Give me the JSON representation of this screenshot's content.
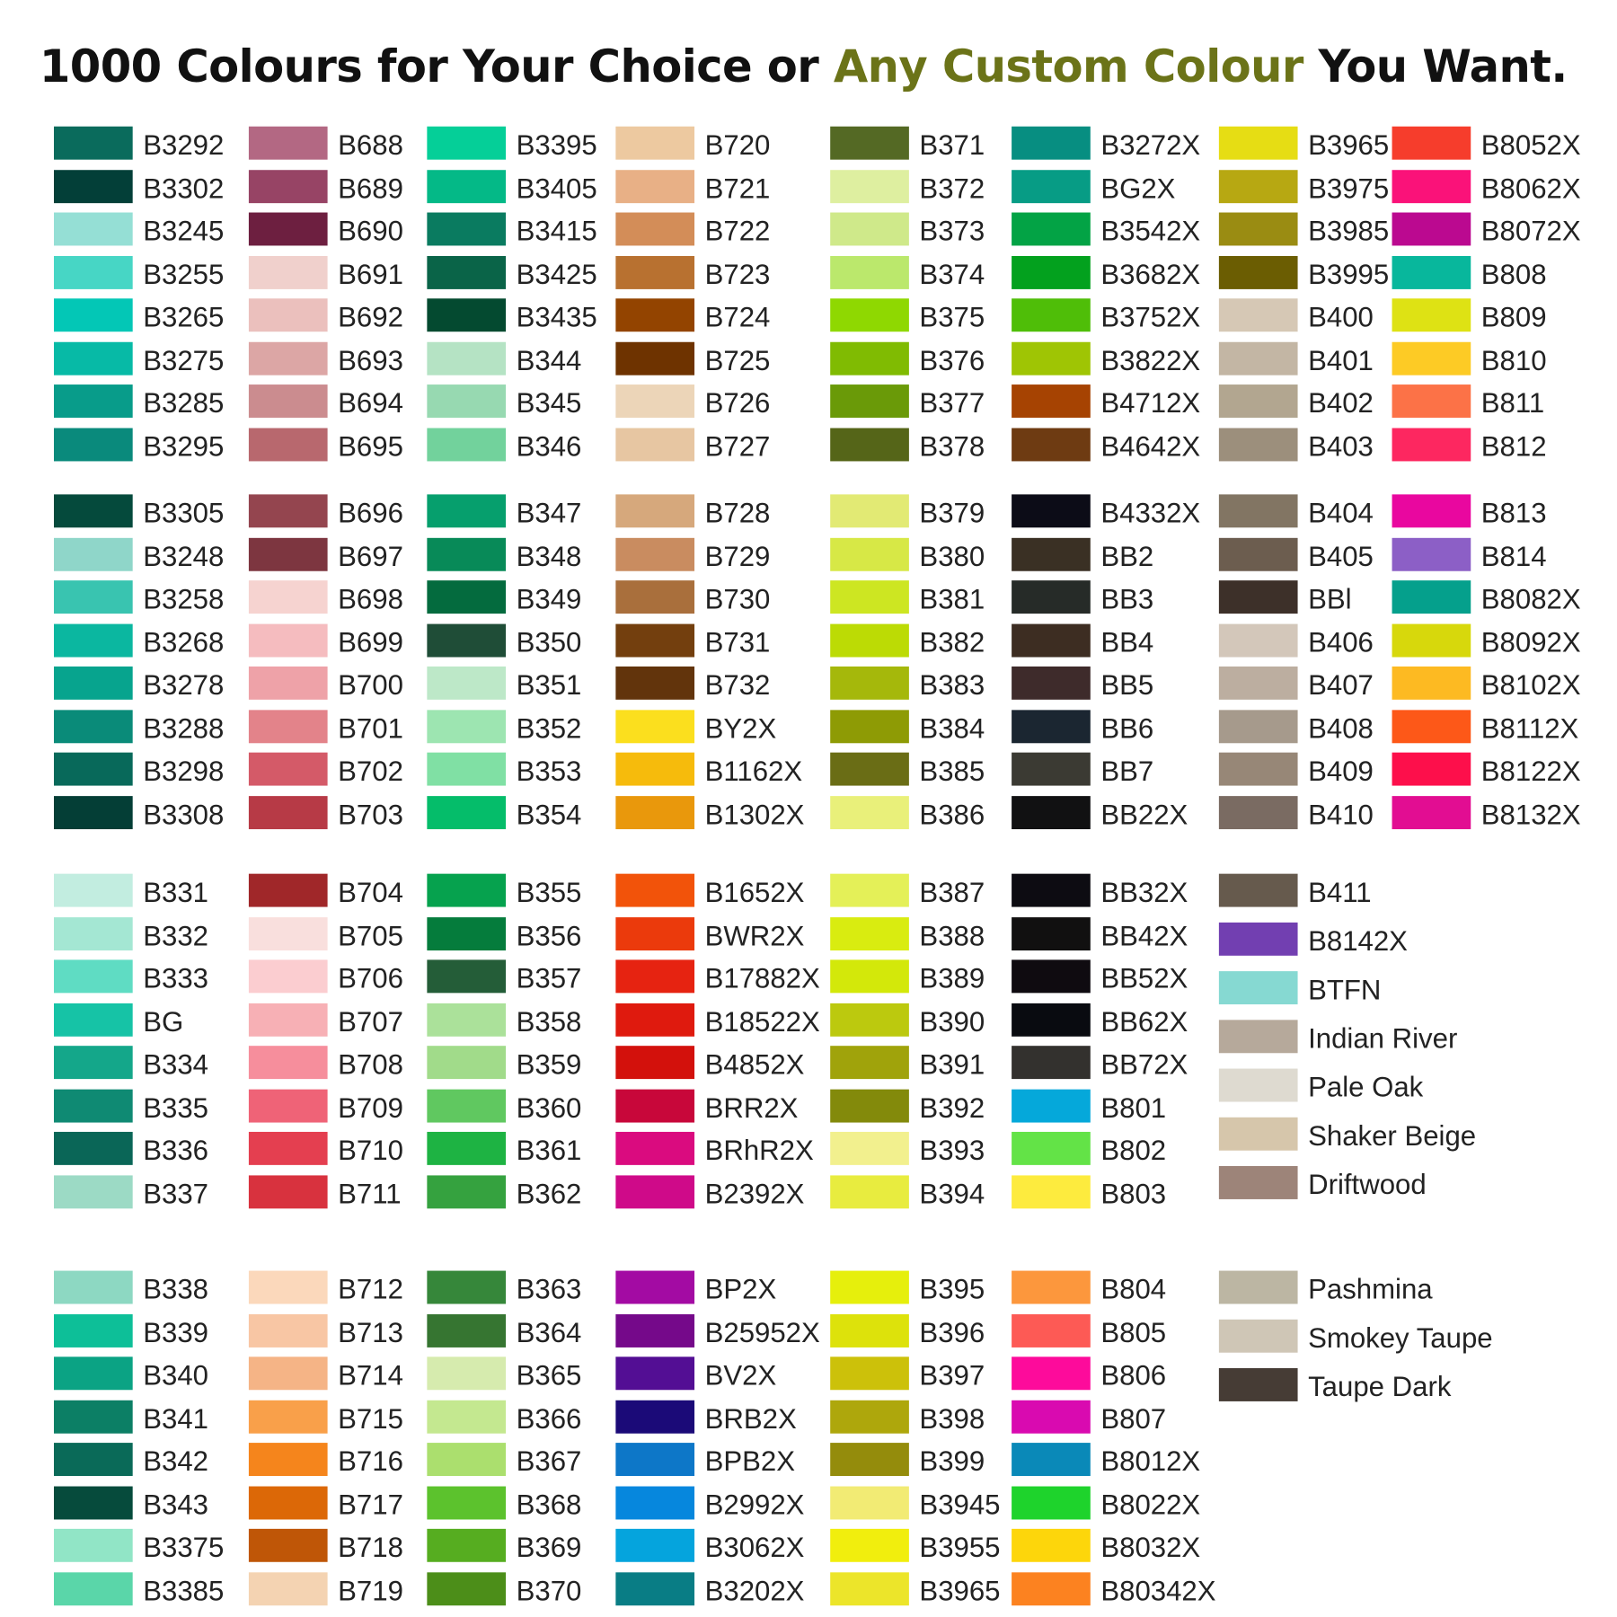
{
  "title": {
    "part1": "1000 Colours for Your Choice or ",
    "accent": "Any Custom Colour",
    "part2": " You Want.",
    "accent_color": "#6b7318"
  },
  "blocks": [
    {
      "columns": [
        {
          "items": [
            [
              "B3292",
              "#0a6b5c"
            ],
            [
              "B3302",
              "#033f38"
            ],
            [
              "B3245",
              "#95dfd5"
            ],
            [
              "B3255",
              "#47d6c5"
            ],
            [
              "B3265",
              "#03c7b6"
            ],
            [
              "B3275",
              "#07baa6"
            ],
            [
              "B3285",
              "#089c8a"
            ],
            [
              "B3295",
              "#0a8a7c"
            ]
          ]
        },
        {
          "items": [
            [
              "B688",
              "#b36883"
            ],
            [
              "B689",
              "#974465"
            ],
            [
              "B690",
              "#6d1f40"
            ],
            [
              "B691",
              "#f0d0cc"
            ],
            [
              "B692",
              "#ebc0bd"
            ],
            [
              "B693",
              "#dca6a5"
            ],
            [
              "B694",
              "#cb8c8f"
            ],
            [
              "B695",
              "#b8686e"
            ]
          ]
        },
        {
          "items": [
            [
              "B3395",
              "#05cf98"
            ],
            [
              "B3405",
              "#04b987"
            ],
            [
              "B3415",
              "#0a7b60"
            ],
            [
              "B3425",
              "#0a6448"
            ],
            [
              "B3435",
              "#044a30"
            ],
            [
              "B344",
              "#b5e3c4"
            ],
            [
              "B345",
              "#97d9b1"
            ],
            [
              "B346",
              "#72d29c"
            ]
          ]
        },
        {
          "items": [
            [
              "B720",
              "#edc9a0"
            ],
            [
              "B721",
              "#e8b086"
            ],
            [
              "B722",
              "#d38d58"
            ],
            [
              "B723",
              "#b87130"
            ],
            [
              "B724",
              "#934400"
            ],
            [
              "B725",
              "#6e3300"
            ],
            [
              "B726",
              "#ecd5b8"
            ],
            [
              "B727",
              "#e7c6a2"
            ]
          ]
        },
        {
          "items": [
            [
              "B371",
              "#546924"
            ],
            [
              "B372",
              "#deefa0"
            ],
            [
              "B373",
              "#cfe98a"
            ],
            [
              "B374",
              "#bbe86c"
            ],
            [
              "B375",
              "#8fd801"
            ],
            [
              "B376",
              "#80bb02"
            ],
            [
              "B377",
              "#6a9a08"
            ],
            [
              "B378",
              "#556518"
            ]
          ]
        },
        {
          "items": [
            [
              "B3272X",
              "#078e81"
            ],
            [
              "BG2X",
              "#079c85"
            ],
            [
              "B3542X",
              "#03a345"
            ],
            [
              "B3682X",
              "#03a11e"
            ],
            [
              "B3752X",
              "#4fbe08"
            ],
            [
              "B3822X",
              "#9fc504"
            ],
            [
              "B4712X",
              "#a64302"
            ],
            [
              "B4642X",
              "#6e3b12"
            ]
          ]
        },
        {
          "items": [
            [
              "B3965",
              "#e6dd14"
            ],
            [
              "B3975",
              "#b7a812"
            ],
            [
              "B3985",
              "#9a8c12"
            ],
            [
              "B3995",
              "#6b5d02"
            ],
            [
              "B400",
              "#d6c8b5"
            ],
            [
              "B401",
              "#c3b6a4"
            ],
            [
              "B402",
              "#b2a690"
            ],
            [
              "B403",
              "#9c8f7c"
            ]
          ]
        },
        {
          "items": [
            [
              "B8052X",
              "#f63d2c"
            ],
            [
              "B8062X",
              "#fa1279"
            ],
            [
              "B8072X",
              "#bb0990"
            ],
            [
              "B808",
              "#08b79c"
            ],
            [
              "B809",
              "#dee214"
            ],
            [
              "B810",
              "#fdcb25"
            ],
            [
              "B811",
              "#fc7247"
            ],
            [
              "B812",
              "#fd2760"
            ]
          ]
        }
      ]
    },
    {
      "columns": [
        {
          "items": [
            [
              "B3305",
              "#054a3c"
            ],
            [
              "B3248",
              "#8fd6c9"
            ],
            [
              "B3258",
              "#39c4b0"
            ],
            [
              "B3268",
              "#0bb7a0"
            ],
            [
              "B3278",
              "#07a48e"
            ],
            [
              "B3288",
              "#0a8b79"
            ],
            [
              "B3298",
              "#08695a"
            ],
            [
              "B3308",
              "#043e36"
            ]
          ]
        },
        {
          "items": [
            [
              "B696",
              "#94454f"
            ],
            [
              "B697",
              "#7d3640"
            ],
            [
              "B698",
              "#f6d3d0"
            ],
            [
              "B699",
              "#f5bcbf"
            ],
            [
              "B700",
              "#eea2a8"
            ],
            [
              "B701",
              "#e3838a"
            ],
            [
              "B702",
              "#d45a68"
            ],
            [
              "B703",
              "#b73a46"
            ]
          ]
        },
        {
          "items": [
            [
              "B347",
              "#069f6d"
            ],
            [
              "B348",
              "#088a58"
            ],
            [
              "B349",
              "#046b3e"
            ],
            [
              "B350",
              "#1f4d37"
            ],
            [
              "B351",
              "#bde8c8"
            ],
            [
              "B352",
              "#9de5b1"
            ],
            [
              "B353",
              "#80e0a4"
            ],
            [
              "B354",
              "#05bd6a"
            ]
          ]
        },
        {
          "items": [
            [
              "B728",
              "#d6a87c"
            ],
            [
              "B729",
              "#c98c60"
            ],
            [
              "B730",
              "#a96f3c"
            ],
            [
              "B731",
              "#733f0e"
            ],
            [
              "B732",
              "#62340c"
            ],
            [
              "BY2X",
              "#fbdf1e"
            ],
            [
              "B1162X",
              "#f6bb0c"
            ],
            [
              "B1302X",
              "#e9980c"
            ]
          ]
        },
        {
          "items": [
            [
              "B379",
              "#e2ea74"
            ],
            [
              "B380",
              "#d7e846"
            ],
            [
              "B381",
              "#cde622"
            ],
            [
              "B382",
              "#bcdb05"
            ],
            [
              "B383",
              "#a5b80b"
            ],
            [
              "B384",
              "#8e9b05"
            ],
            [
              "B385",
              "#6a6d15"
            ],
            [
              "B386",
              "#e9f07a"
            ]
          ]
        },
        {
          "items": [
            [
              "B4332X",
              "#0c0c17"
            ],
            [
              "BB2",
              "#3a3024"
            ],
            [
              "BB3",
              "#262b28"
            ],
            [
              "BB4",
              "#3d2d22"
            ],
            [
              "BB5",
              "#3e2b2b"
            ],
            [
              "BB6",
              "#1b2631"
            ],
            [
              "BB7",
              "#3b3a33"
            ],
            [
              "BB22X",
              "#111112"
            ]
          ]
        },
        {
          "items": [
            [
              "B404",
              "#827563"
            ],
            [
              "B405",
              "#6c5d4f"
            ],
            [
              "BBl",
              "#3d3029"
            ],
            [
              "B406",
              "#d3c7ba"
            ],
            [
              "B407",
              "#bcaea0"
            ],
            [
              "B408",
              "#a69a8c"
            ],
            [
              "B409",
              "#978777"
            ],
            [
              "B410",
              "#7a6b62"
            ]
          ]
        },
        {
          "items": [
            [
              "B813",
              "#e9079f"
            ],
            [
              "B814",
              "#8c5fc6"
            ],
            [
              "B8082X",
              "#05a08c"
            ],
            [
              "B8092X",
              "#d7d80c"
            ],
            [
              "B8102X",
              "#fdba22"
            ],
            [
              "B8112X",
              "#fd5818"
            ],
            [
              "B8122X",
              "#fd0f4b"
            ],
            [
              "B8132X",
              "#e20d92"
            ]
          ]
        }
      ]
    },
    {
      "columns": [
        {
          "items": [
            [
              "B331",
              "#c2ede0"
            ],
            [
              "B332",
              "#a4e7d3"
            ],
            [
              "B333",
              "#5fdcc3"
            ],
            [
              "BG",
              "#16c3a6"
            ],
            [
              "B334",
              "#14a78a"
            ],
            [
              "B335",
              "#0f8a73"
            ],
            [
              "B336",
              "#0a6657"
            ],
            [
              "B337",
              "#9cdac5"
            ]
          ]
        },
        {
          "items": [
            [
              "B704",
              "#a02729"
            ],
            [
              "B705",
              "#f9dfdd"
            ],
            [
              "B706",
              "#fbcdd0"
            ],
            [
              "B707",
              "#f7b0b5"
            ],
            [
              "B708",
              "#f68e9c"
            ],
            [
              "B709",
              "#ef6377"
            ],
            [
              "B710",
              "#e43f50"
            ],
            [
              "B711",
              "#d8323e"
            ]
          ]
        },
        {
          "items": [
            [
              "B355",
              "#06a24e"
            ],
            [
              "B356",
              "#057c3c"
            ],
            [
              "B357",
              "#245d38"
            ],
            [
              "B358",
              "#abe19a"
            ],
            [
              "B359",
              "#a1db8a"
            ],
            [
              "B360",
              "#60c860"
            ],
            [
              "B361",
              "#1eb343"
            ],
            [
              "B362",
              "#35a23f"
            ]
          ]
        },
        {
          "items": [
            [
              "B1652X",
              "#f2530a"
            ],
            [
              "BWR2X",
              "#eb3a0c"
            ],
            [
              "B17882X",
              "#e62311"
            ],
            [
              "B18522X",
              "#df1a0e"
            ],
            [
              "B4852X",
              "#d3110c"
            ],
            [
              "BRR2X",
              "#c8073a"
            ],
            [
              "BRhR2X",
              "#da0b7f"
            ],
            [
              "B2392X",
              "#cf0a89"
            ]
          ]
        },
        {
          "items": [
            [
              "B387",
              "#e4f058"
            ],
            [
              "B388",
              "#d9ec10"
            ],
            [
              "B389",
              "#d3e80a"
            ],
            [
              "B390",
              "#bcc90e"
            ],
            [
              "B391",
              "#a0a30b"
            ],
            [
              "B392",
              "#838a0b"
            ],
            [
              "B393",
              "#f2f08e"
            ],
            [
              "B394",
              "#e8ec3f"
            ]
          ]
        },
        {
          "items": [
            [
              "BB32X",
              "#0d0c12"
            ],
            [
              "BB42X",
              "#111010"
            ],
            [
              "BB52X",
              "#0f0b10"
            ],
            [
              "BB62X",
              "#090b10"
            ],
            [
              "BB72X",
              "#33312e"
            ],
            [
              "B801",
              "#05a8da"
            ],
            [
              "B802",
              "#63e347"
            ],
            [
              "B803",
              "#fdeb3e"
            ]
          ]
        },
        {
          "items": [
            [
              "B411",
              "#665a4d"
            ],
            [
              "B8142X",
              "#723fb1"
            ],
            [
              "BTFN",
              "#86d9d2"
            ],
            [
              "Indian River",
              "#b6a99b"
            ],
            [
              "Pale Oak",
              "#dedad0"
            ],
            [
              "Shaker Beige",
              "#d6c6ab"
            ],
            [
              "Driftwood",
              "#9d8479"
            ]
          ]
        }
      ]
    },
    {
      "columns": [
        {
          "items": [
            [
              "B338",
              "#8dd8c2"
            ],
            [
              "B339",
              "#0dbf98"
            ],
            [
              "B340",
              "#0ba384"
            ],
            [
              "B341",
              "#0c7f65"
            ],
            [
              "B342",
              "#0a6a58"
            ],
            [
              "B343",
              "#064b3c"
            ],
            [
              "B3375",
              "#91e5c6"
            ],
            [
              "B3385",
              "#5ad6a9"
            ]
          ]
        },
        {
          "items": [
            [
              "B712",
              "#fbd8bb"
            ],
            [
              "B713",
              "#f8c6a4"
            ],
            [
              "B714",
              "#f5b486"
            ],
            [
              "B715",
              "#f9a04a"
            ],
            [
              "B716",
              "#f5851c"
            ],
            [
              "B717",
              "#dc6807"
            ],
            [
              "B718",
              "#bf5607"
            ],
            [
              "B719",
              "#f4d3b2"
            ]
          ]
        },
        {
          "items": [
            [
              "B363",
              "#36873a"
            ],
            [
              "B364",
              "#367531"
            ],
            [
              "B365",
              "#d6ebae"
            ],
            [
              "B366",
              "#c4e890"
            ],
            [
              "B367",
              "#abdf6e"
            ],
            [
              "B368",
              "#5cc22d"
            ],
            [
              "B369",
              "#56ad20"
            ],
            [
              "B370",
              "#4c8e19"
            ]
          ]
        },
        {
          "items": [
            [
              "BP2X",
              "#a30ba3"
            ],
            [
              "B25952X",
              "#75098a"
            ],
            [
              "BV2X",
              "#530e94"
            ],
            [
              "BRB2X",
              "#1b0a78"
            ],
            [
              "BPB2X",
              "#0d77c8"
            ],
            [
              "B2992X",
              "#0687dd"
            ],
            [
              "B3062X",
              "#05a4dd"
            ],
            [
              "B3202X",
              "#097d85"
            ]
          ]
        },
        {
          "items": [
            [
              "B395",
              "#e6ef0c"
            ],
            [
              "B396",
              "#dde20b"
            ],
            [
              "B397",
              "#ccc10a"
            ],
            [
              "B398",
              "#aea70c"
            ],
            [
              "B399",
              "#948c0c"
            ],
            [
              "B3945",
              "#f2eb74"
            ],
            [
              "B3955",
              "#f1ee0d"
            ],
            [
              "B3965",
              "#ece52a"
            ]
          ]
        },
        {
          "items": [
            [
              "B804",
              "#fc973d"
            ],
            [
              "B805",
              "#fd5a55"
            ],
            [
              "B806",
              "#fd0b9b"
            ],
            [
              "B807",
              "#d90ab0"
            ],
            [
              "B8012X",
              "#0a89b8"
            ],
            [
              "B8022X",
              "#1ed32c"
            ],
            [
              "B8032X",
              "#fdd60b"
            ],
            [
              "B80342X",
              "#fc8220"
            ]
          ]
        },
        {
          "items": [
            [
              "Pashmina",
              "#bcb6a3"
            ],
            [
              "Smokey Taupe",
              "#cfc6b6"
            ],
            [
              "Taupe Dark",
              "#463c35"
            ]
          ]
        }
      ]
    }
  ]
}
